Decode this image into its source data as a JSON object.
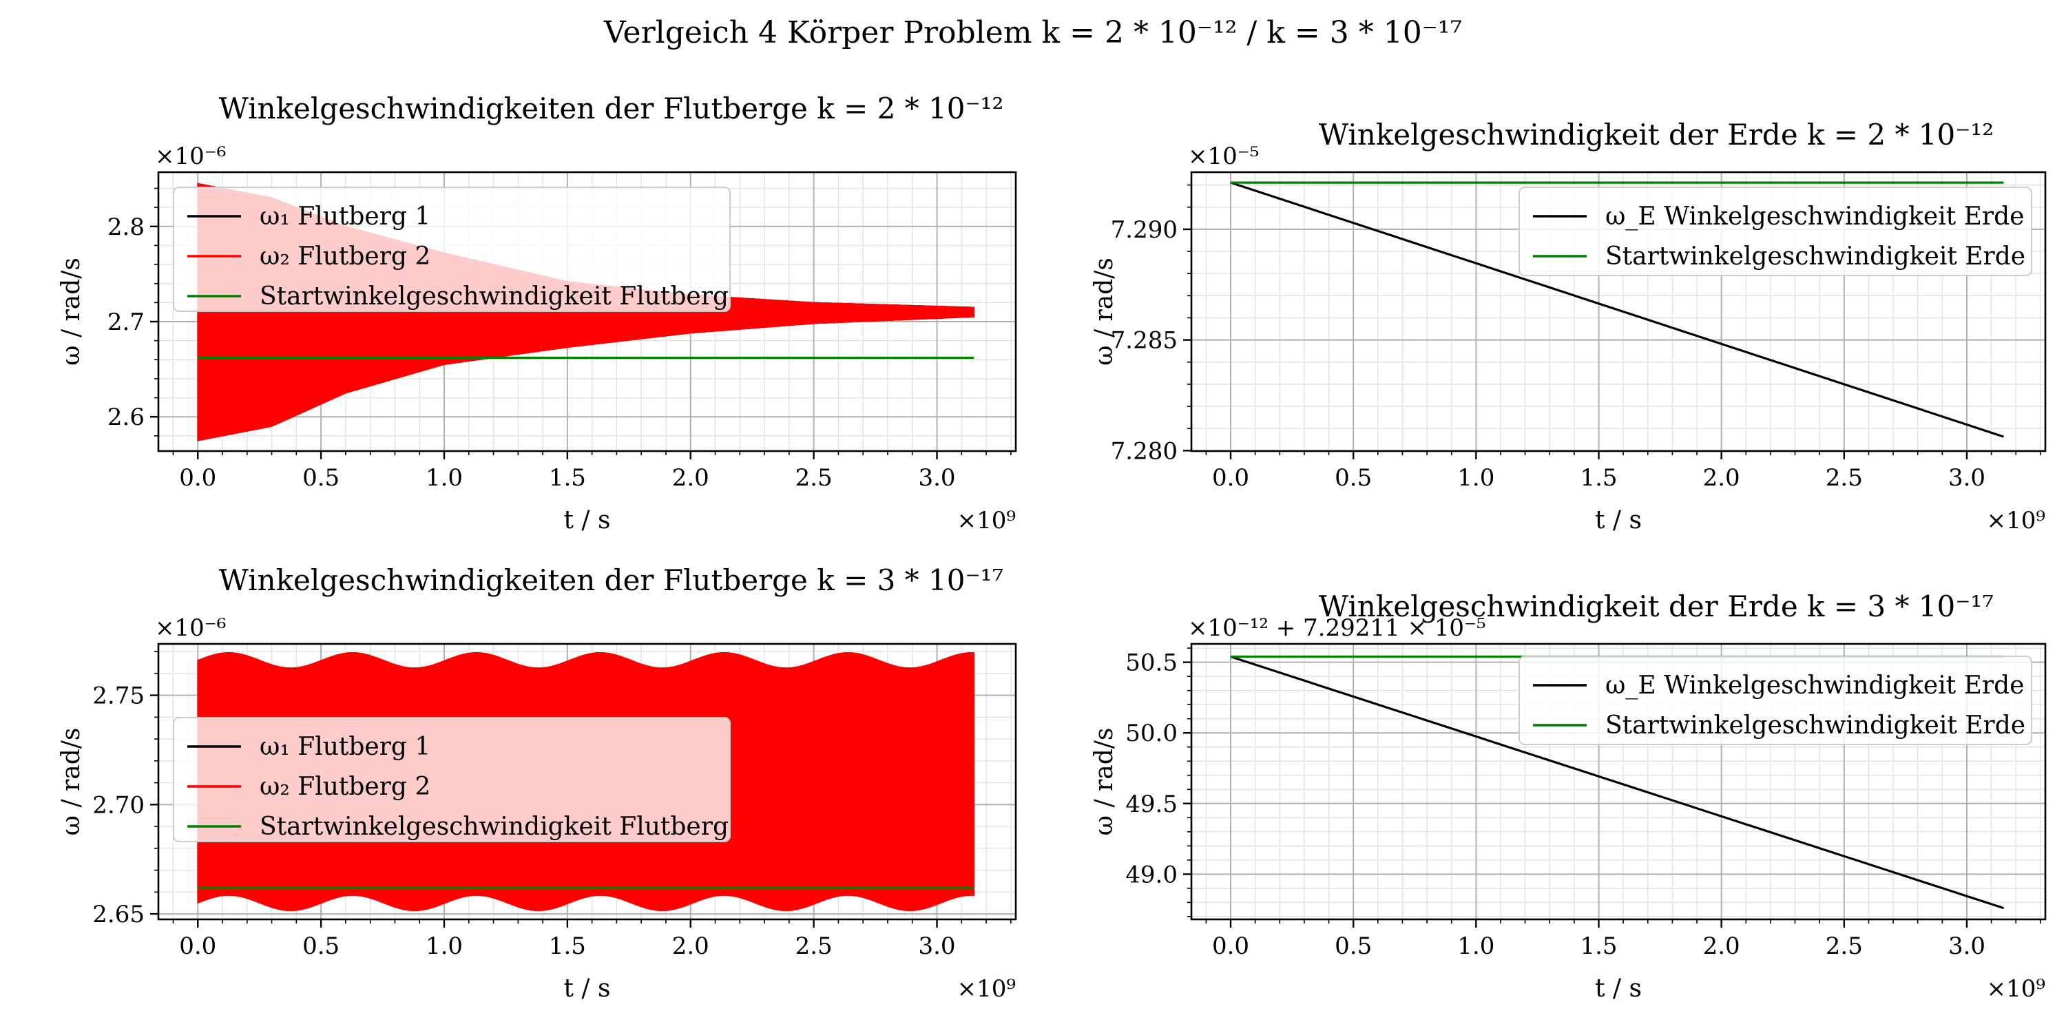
{
  "figure": {
    "suptitle": "Verlgeich 4 Körper Problem k = 2 * 10⁻¹² / k = 3 * 10⁻¹⁷"
  },
  "chart_data": [
    {
      "type": "line",
      "title": "Winkelgeschwindigkeiten der Flutberge k = 2 * 10⁻¹²",
      "xlabel": "t / s",
      "ylabel": "ω / rad/s",
      "x_multiplier_label": "×10⁹",
      "y_multiplier_label": "×10⁻⁶",
      "xlim": [
        -0.16,
        3.32
      ],
      "ylim": [
        2.564,
        2.857
      ],
      "xticks": [
        0,
        0.5,
        1,
        1.5,
        2,
        2.5,
        3
      ],
      "xtick_labels": [
        "0.0",
        "0.5",
        "1.0",
        "1.5",
        "2.0",
        "2.5",
        "3.0"
      ],
      "yticks": [
        2.6,
        2.7,
        2.8
      ],
      "ytick_labels": [
        "2.6",
        "2.7",
        "2.8"
      ],
      "grid": true,
      "legend": "upper-left",
      "series": [
        {
          "name": "ω₁ Flutberg 1",
          "color": "#000000",
          "style": "oscillation-band",
          "x": [
            0,
            0.3,
            0.6,
            1.0,
            1.5,
            2.0,
            2.5,
            3.15
          ],
          "upper": [
            2.845,
            2.83,
            2.8,
            2.772,
            2.742,
            2.728,
            2.72,
            2.715
          ],
          "lower": [
            2.575,
            2.59,
            2.625,
            2.655,
            2.673,
            2.688,
            2.698,
            2.705
          ]
        },
        {
          "name": "ω₂ Flutberg 2",
          "color": "#ff0000",
          "style": "oscillation-band",
          "x": [
            0,
            0.3,
            0.6,
            1.0,
            1.5,
            2.0,
            2.5,
            3.15
          ],
          "upper": [
            2.845,
            2.83,
            2.8,
            2.772,
            2.742,
            2.728,
            2.72,
            2.715
          ],
          "lower": [
            2.575,
            2.59,
            2.625,
            2.655,
            2.673,
            2.688,
            2.698,
            2.705
          ]
        },
        {
          "name": "Startwinkelgeschwindigkeit Flutberg",
          "color": "#008000",
          "style": "line",
          "x": [
            0,
            3.15
          ],
          "y": [
            2.662,
            2.662
          ]
        }
      ]
    },
    {
      "type": "line",
      "title": "Winkelgeschwindigkeit der Erde k = 2 * 10⁻¹²",
      "xlabel": "t / s",
      "ylabel": "ω / rad/s",
      "x_multiplier_label": "×10⁹",
      "y_multiplier_label": "×10⁻⁵",
      "xlim": [
        -0.16,
        3.32
      ],
      "ylim": [
        7.27998,
        7.29258
      ],
      "xticks": [
        0,
        0.5,
        1,
        1.5,
        2,
        2.5,
        3
      ],
      "xtick_labels": [
        "0.0",
        "0.5",
        "1.0",
        "1.5",
        "2.0",
        "2.5",
        "3.0"
      ],
      "yticks": [
        7.28,
        7.285,
        7.29
      ],
      "ytick_labels": [
        "7.280",
        "7.285",
        "7.290"
      ],
      "grid": true,
      "legend": "upper-right",
      "series": [
        {
          "name": "ω_E Winkelgeschwindigkeit Erde",
          "color": "#000000",
          "style": "line",
          "x": [
            0,
            3.15
          ],
          "y": [
            7.29211,
            7.28063
          ]
        },
        {
          "name": "Startwinkelgeschwindigkeit Erde",
          "color": "#008000",
          "style": "line",
          "x": [
            0,
            3.15
          ],
          "y": [
            7.29211,
            7.29211
          ]
        }
      ]
    },
    {
      "type": "line",
      "title": "Winkelgeschwindigkeiten der Flutberge k = 3 * 10⁻¹⁷",
      "xlabel": "t / s",
      "ylabel": "ω / rad/s",
      "x_multiplier_label": "×10⁹",
      "y_multiplier_label": "×10⁻⁶",
      "xlim": [
        -0.16,
        3.32
      ],
      "ylim": [
        2.6475,
        2.7735
      ],
      "xticks": [
        0,
        0.5,
        1,
        1.5,
        2,
        2.5,
        3
      ],
      "xtick_labels": [
        "0.0",
        "0.5",
        "1.0",
        "1.5",
        "2.0",
        "2.5",
        "3.0"
      ],
      "yticks": [
        2.65,
        2.7,
        2.75
      ],
      "ytick_labels": [
        "2.65",
        "2.70",
        "2.75"
      ],
      "grid": true,
      "legend": "center-left",
      "series": [
        {
          "name": "ω₁ Flutberg 1",
          "color": "#000000",
          "style": "oscillation-band",
          "x": [
            0,
            3.15
          ],
          "upper": [
            2.764,
            2.764
          ],
          "lower": [
            2.658,
            2.658
          ]
        },
        {
          "name": "ω₂ Flutberg 2",
          "color": "#ff0000",
          "style": "oscillation-band",
          "x": [
            0,
            3.15
          ],
          "upper": [
            2.766,
            2.766
          ],
          "lower": [
            2.655,
            2.655
          ]
        },
        {
          "name": "Startwinkelgeschwindigkeit Flutberg",
          "color": "#008000",
          "style": "line",
          "x": [
            0,
            3.15
          ],
          "y": [
            2.662,
            2.662
          ]
        }
      ]
    },
    {
      "type": "line",
      "title": "Winkelgeschwindigkeit der Erde k = 3 * 10⁻¹⁷",
      "xlabel": "t / s",
      "ylabel": "ω / rad/s",
      "x_multiplier_label": "×10⁹",
      "y_multiplier_label": "×10⁻¹² + 7.29211 × 10⁻⁵",
      "xlim": [
        -0.16,
        3.32
      ],
      "ylim": [
        48.68,
        50.63
      ],
      "xticks": [
        0,
        0.5,
        1,
        1.5,
        2,
        2.5,
        3
      ],
      "xtick_labels": [
        "0.0",
        "0.5",
        "1.0",
        "1.5",
        "2.0",
        "2.5",
        "3.0"
      ],
      "yticks": [
        49.0,
        49.5,
        50.0,
        50.5
      ],
      "ytick_labels": [
        "49.0",
        "49.5",
        "50.0",
        "50.5"
      ],
      "grid": true,
      "legend": "upper-right",
      "series": [
        {
          "name": "ω_E Winkelgeschwindigkeit Erde",
          "color": "#000000",
          "style": "line",
          "x": [
            0,
            3.15
          ],
          "y": [
            50.54,
            48.76
          ]
        },
        {
          "name": "Startwinkelgeschwindigkeit Erde",
          "color": "#008000",
          "style": "line",
          "x": [
            0,
            3.15
          ],
          "y": [
            50.54,
            50.54
          ]
        }
      ]
    }
  ]
}
